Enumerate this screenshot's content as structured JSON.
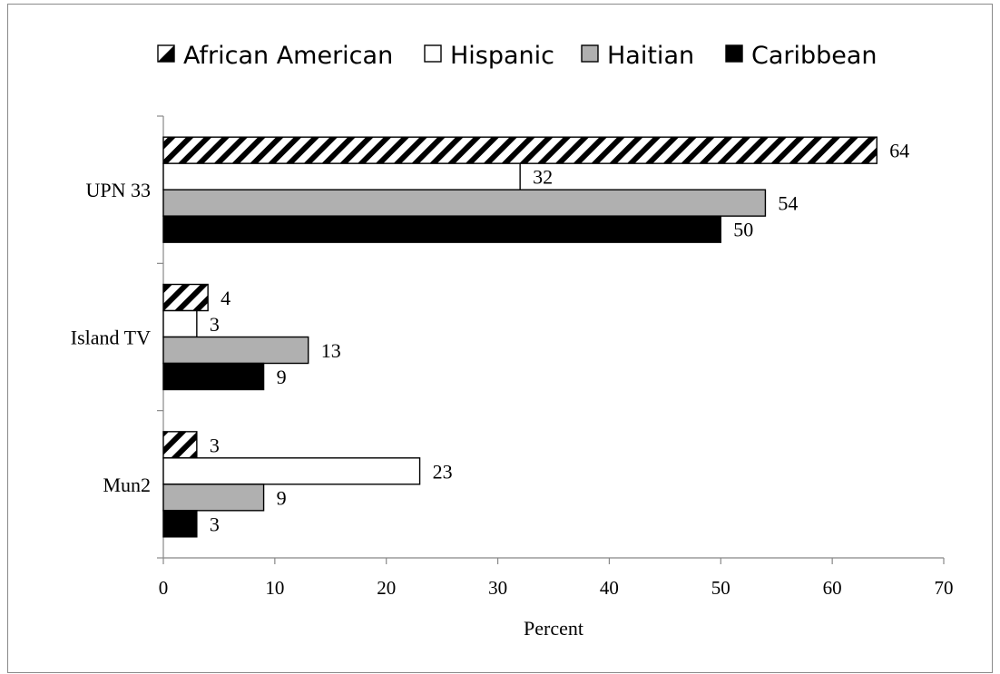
{
  "chart_data": {
    "type": "bar",
    "orientation": "horizontal",
    "categories": [
      "UPN 33",
      "Island TV",
      "Mun2"
    ],
    "series": [
      {
        "name": "African American",
        "values": [
          64,
          4,
          3
        ],
        "fill": "hatch"
      },
      {
        "name": "Hispanic",
        "values": [
          32,
          3,
          23
        ],
        "fill": "#ffffff"
      },
      {
        "name": "Haitian",
        "values": [
          54,
          13,
          9
        ],
        "fill": "#b0b0b0"
      },
      {
        "name": "Caribbean",
        "values": [
          50,
          9,
          3
        ],
        "fill": "#000000"
      }
    ],
    "xlabel": "Percent",
    "xlim": [
      0,
      70
    ],
    "xticks": [
      0,
      10,
      20,
      30,
      40,
      50,
      60,
      70
    ],
    "legend_position": "top",
    "grid": false,
    "data_labels": true
  }
}
